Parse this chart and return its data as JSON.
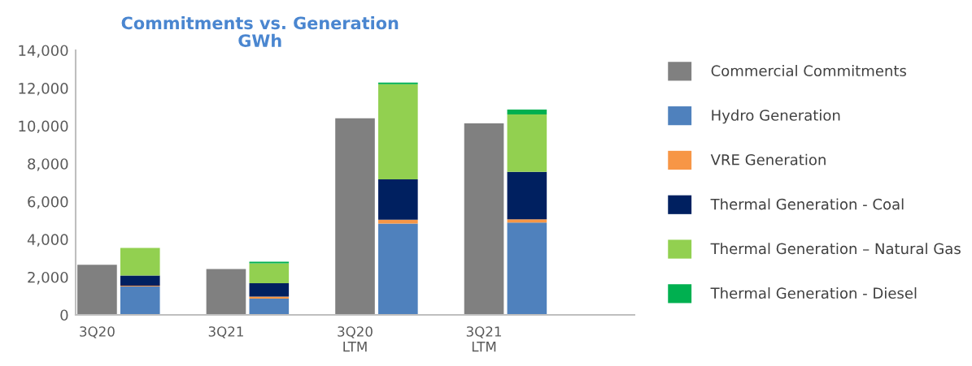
{
  "chart_data": {
    "type": "bar",
    "title": "Commitments vs. Generation\nGWh",
    "stacked": true,
    "categories": [
      "3Q20",
      null,
      null,
      "3Q21",
      null,
      null,
      "3Q20\nLTM",
      null,
      null,
      "3Q21\nLTM",
      null,
      null,
      null
    ],
    "series": [
      {
        "name": "Commercial Commitments",
        "color": "#808080",
        "values": [
          2650,
          null,
          null,
          2430,
          null,
          null,
          10400,
          null,
          null,
          10140,
          null,
          null,
          null
        ]
      },
      {
        "name": "Hydro Generation",
        "color": "#4f81bd",
        "values": [
          null,
          1500,
          null,
          null,
          860,
          null,
          null,
          4830,
          null,
          null,
          4890,
          null,
          null
        ]
      },
      {
        "name": "VRE Generation",
        "color": "#f79646",
        "values": [
          null,
          50,
          null,
          null,
          110,
          null,
          null,
          200,
          null,
          null,
          170,
          null,
          null
        ]
      },
      {
        "name": "Thermal Generation - Coal",
        "color": "#002060",
        "values": [
          null,
          530,
          null,
          null,
          700,
          null,
          null,
          2140,
          null,
          null,
          2510,
          null,
          null
        ]
      },
      {
        "name": "Thermal Generation – Natural Gas",
        "color": "#92d050",
        "values": [
          null,
          1460,
          null,
          null,
          1060,
          null,
          null,
          5040,
          null,
          null,
          3040,
          null,
          null
        ]
      },
      {
        "name": "Thermal Generation - Diesel",
        "color": "#00b050",
        "values": [
          null,
          null,
          null,
          null,
          80,
          null,
          null,
          80,
          null,
          null,
          260,
          null,
          null
        ]
      }
    ],
    "ylim": [
      0,
      14000
    ],
    "yticks": [
      {
        "value": 0,
        "label": "0"
      },
      {
        "value": 2000,
        "label": "2,000"
      },
      {
        "value": 4000,
        "label": "4,000"
      },
      {
        "value": 6000,
        "label": "6,000"
      },
      {
        "value": 8000,
        "label": "8,000"
      },
      {
        "value": 10000,
        "label": "10,000"
      },
      {
        "value": 12000,
        "label": "12,000"
      },
      {
        "value": 14000,
        "label": "14,000"
      }
    ],
    "grid": false,
    "legend": "right"
  }
}
